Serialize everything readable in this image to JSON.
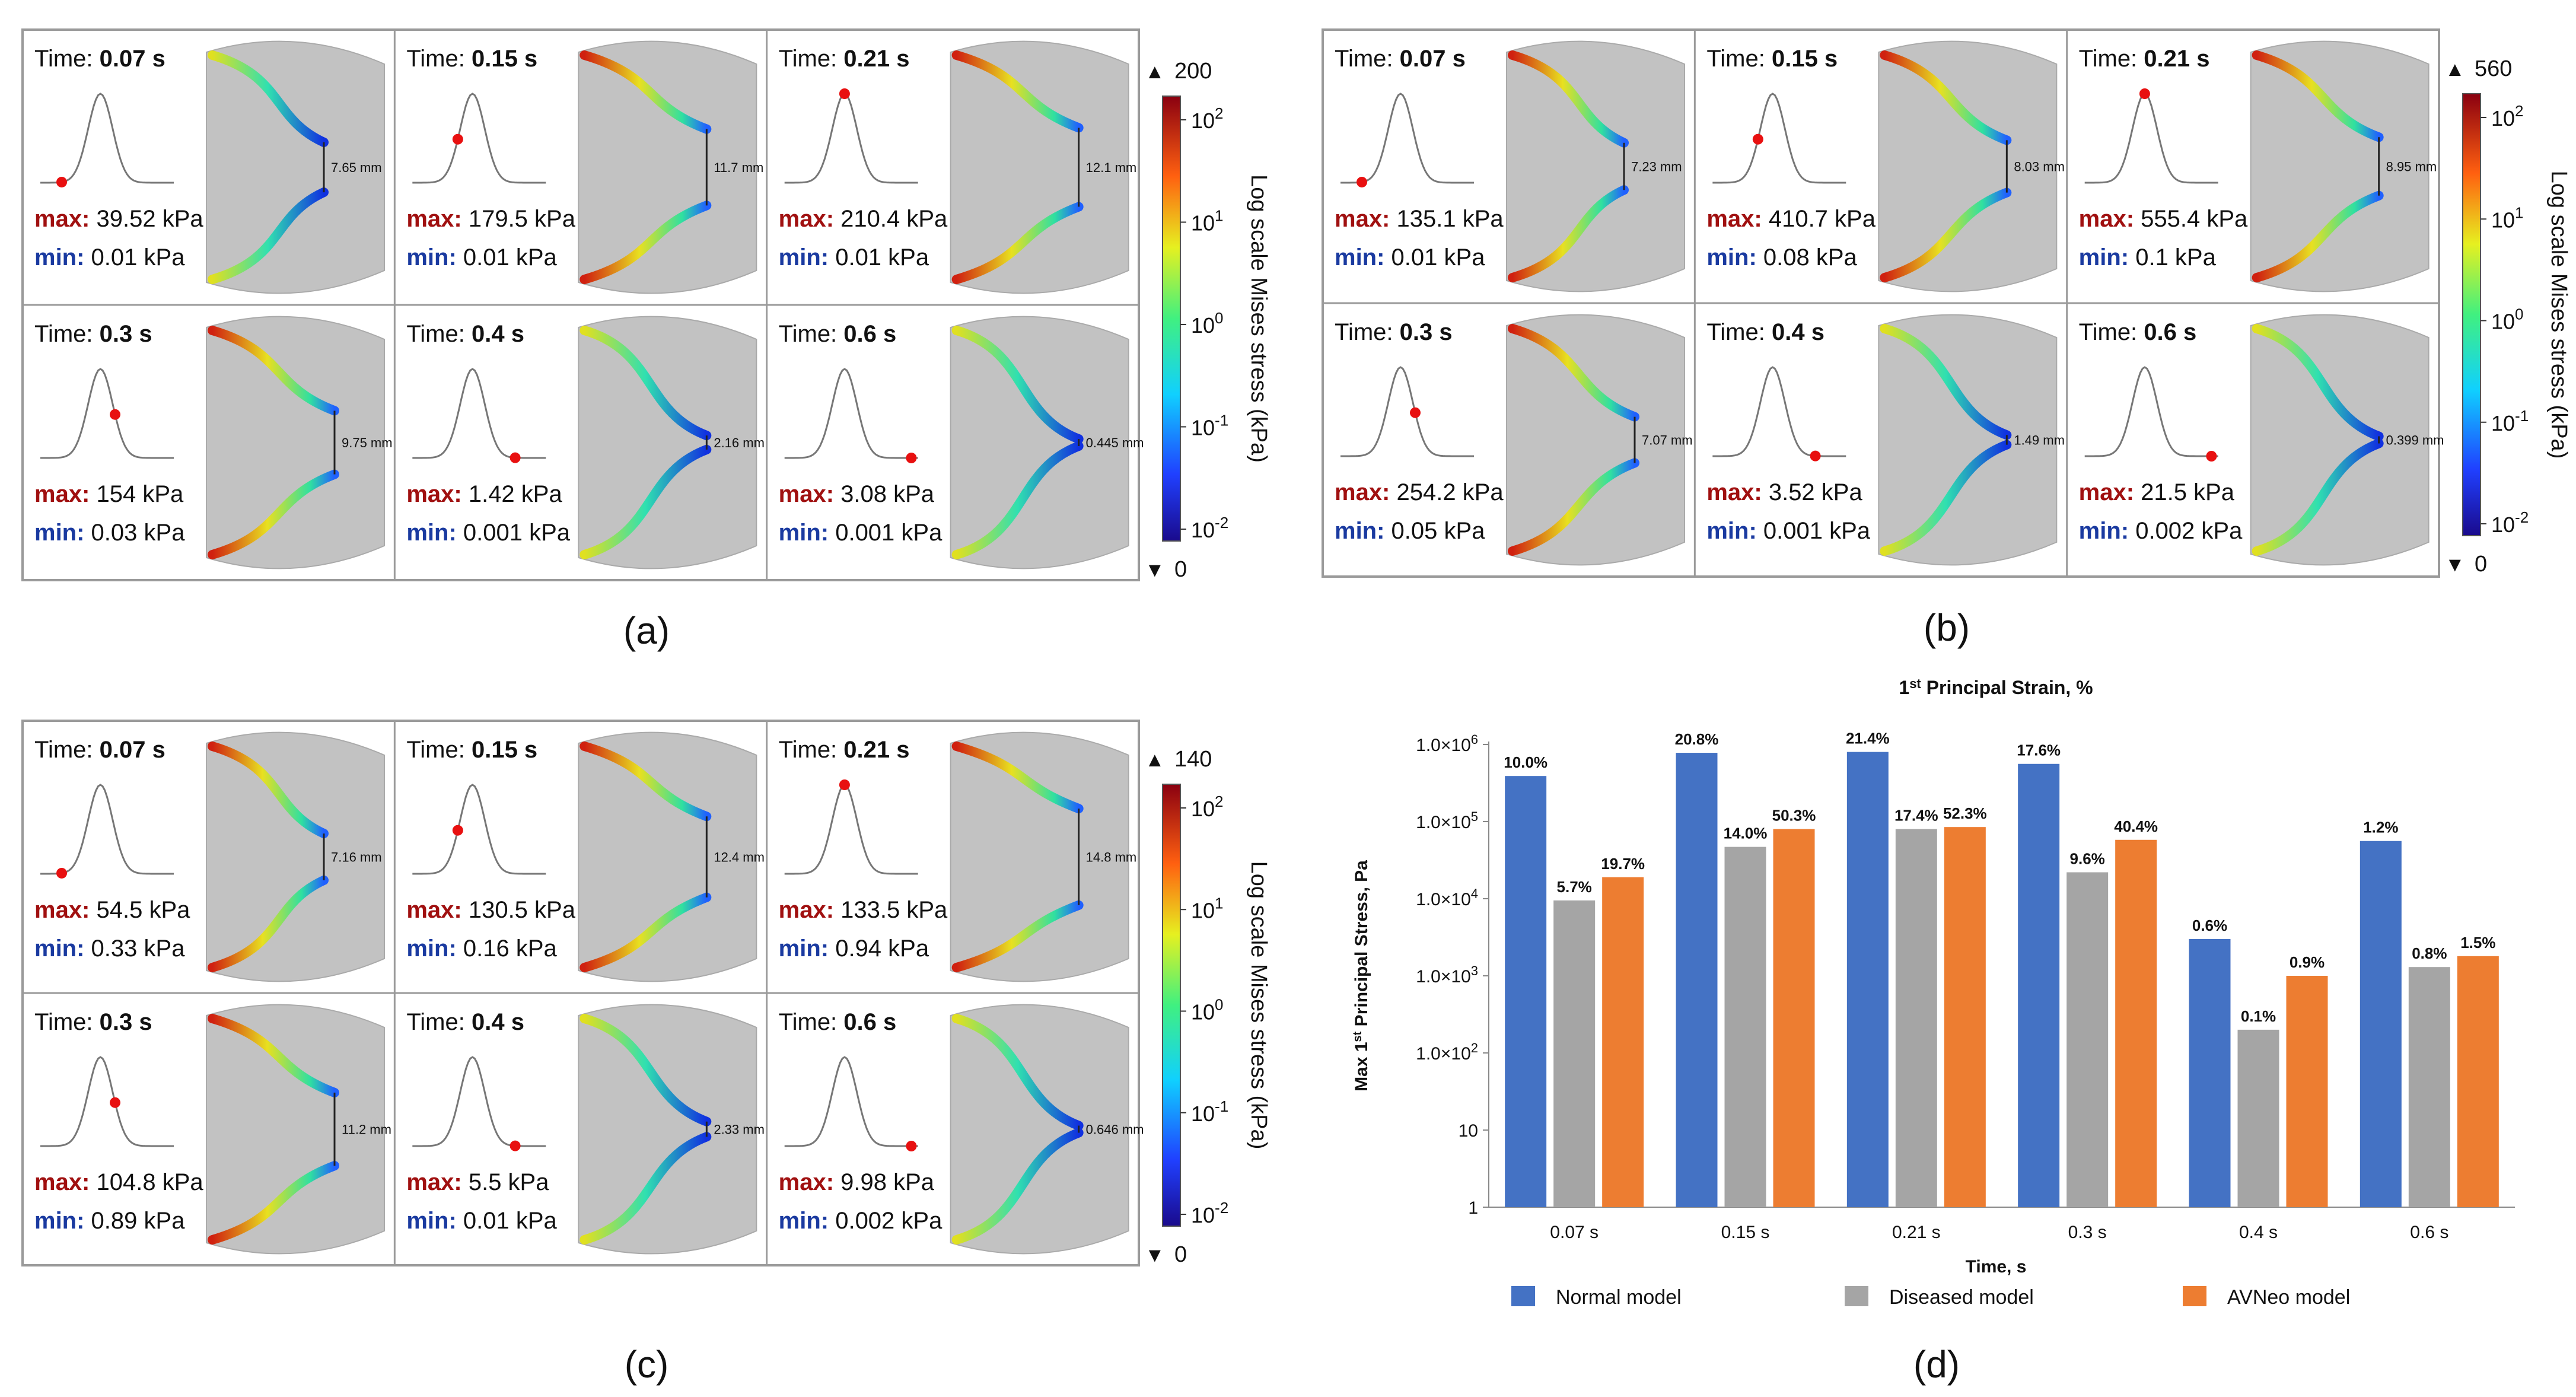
{
  "colorbar_title": "Log scale Mises stress (kPa)",
  "colorbar_ticks": [
    "10",
    "10",
    "10",
    "10",
    "10"
  ],
  "colorbar_tick_exponents": [
    "2",
    "1",
    "0",
    "-1",
    "-2"
  ],
  "time_prefix": "Time:",
  "max_label": "max:",
  "min_label": "min:",
  "panels": [
    {
      "label": "(a)",
      "cb_max": "200",
      "cb_min": "0",
      "cells": [
        {
          "time": "0.07 s",
          "max": "39.52 kPa",
          "min": "0.01 kPa",
          "gap": "7.65 mm",
          "curve_t": 0.16
        },
        {
          "time": "0.15 s",
          "max": "179.5 kPa",
          "min": "0.01 kPa",
          "gap": "11.7 mm",
          "curve_t": 0.34
        },
        {
          "time": "0.21 s",
          "max": "210.4 kPa",
          "min": "0.01 kPa",
          "gap": "12.1 mm",
          "curve_t": 0.45
        },
        {
          "time": "0.3 s",
          "max": "154 kPa",
          "min": "0.03 kPa",
          "gap": "9.75 mm",
          "curve_t": 0.56
        },
        {
          "time": "0.4 s",
          "max": "1.42 kPa",
          "min": "0.001 kPa",
          "gap": "2.16 mm",
          "curve_t": 0.77
        },
        {
          "time": "0.6 s",
          "max": "3.08 kPa",
          "min": "0.001 kPa",
          "gap": "0.445 mm",
          "curve_t": 0.95
        }
      ]
    },
    {
      "label": "(b)",
      "cb_max": "560",
      "cb_min": "0",
      "cells": [
        {
          "time": "0.07 s",
          "max": "135.1 kPa",
          "min": "0.01 kPa",
          "gap": "7.23 mm",
          "curve_t": 0.16
        },
        {
          "time": "0.15 s",
          "max": "410.7 kPa",
          "min": "0.08 kPa",
          "gap": "8.03 mm",
          "curve_t": 0.34
        },
        {
          "time": "0.21 s",
          "max": "555.4 kPa",
          "min": "0.1 kPa",
          "gap": "8.95 mm",
          "curve_t": 0.45
        },
        {
          "time": "0.3 s",
          "max": "254.2 kPa",
          "min": "0.05 kPa",
          "gap": "7.07 mm",
          "curve_t": 0.56
        },
        {
          "time": "0.4 s",
          "max": "3.52 kPa",
          "min": "0.001 kPa",
          "gap": "1.49 mm",
          "curve_t": 0.77
        },
        {
          "time": "0.6 s",
          "max": "21.5 kPa",
          "min": "0.002 kPa",
          "gap": "0.399 mm",
          "curve_t": 0.95
        }
      ]
    },
    {
      "label": "(c)",
      "cb_max": "140",
      "cb_min": "0",
      "cells": [
        {
          "time": "0.07 s",
          "max": "54.5 kPa",
          "min": "0.33 kPa",
          "gap": "7.16 mm",
          "curve_t": 0.16
        },
        {
          "time": "0.15 s",
          "max": "130.5 kPa",
          "min": "0.16 kPa",
          "gap": "12.4 mm",
          "curve_t": 0.34
        },
        {
          "time": "0.21 s",
          "max": "133.5 kPa",
          "min": "0.94 kPa",
          "gap": "14.8 mm",
          "curve_t": 0.45
        },
        {
          "time": "0.3 s",
          "max": "104.8 kPa",
          "min": "0.89 kPa",
          "gap": "11.2 mm",
          "curve_t": 0.56
        },
        {
          "time": "0.4 s",
          "max": "5.5 kPa",
          "min": "0.01 kPa",
          "gap": "2.33 mm",
          "curve_t": 0.77
        },
        {
          "time": "0.6 s",
          "max": "9.98 kPa",
          "min": "0.002 kPa",
          "gap": "0.646 mm",
          "curve_t": 0.95
        }
      ]
    }
  ],
  "chart_data": {
    "panel_label": "(d)",
    "type": "bar",
    "title": "1st Principal Strain, %",
    "title_parts": [
      "1",
      "st",
      " Principal Strain, %"
    ],
    "xlabel": "Time, s",
    "ylabel": "Max 1st Principal Stress, Pa",
    "ylabel_parts": [
      "Max 1",
      "st",
      " Principal Stress, Pa"
    ],
    "yscale": "log",
    "ylim": [
      1,
      1000000
    ],
    "ytick_values": [
      1,
      10,
      100,
      1000,
      10000,
      100000,
      1000000
    ],
    "ytick_labels": [
      {
        "base": "1",
        "exp": ""
      },
      {
        "base": "10",
        "exp": ""
      },
      {
        "base": "1.0×10",
        "exp": "2"
      },
      {
        "base": "1.0×10",
        "exp": "3"
      },
      {
        "base": "1.0×10",
        "exp": "4"
      },
      {
        "base": "1.0×10",
        "exp": "5"
      },
      {
        "base": "1.0×10",
        "exp": "6"
      }
    ],
    "categories": [
      "0.07 s",
      "0.15 s",
      "0.21 s",
      "0.3 s",
      "0.4 s",
      "0.6 s"
    ],
    "series": [
      {
        "name": "Normal model",
        "color": "#4472c4",
        "values": [
          390000,
          780000,
          800000,
          560000,
          3000,
          56000
        ],
        "labels": [
          "10.0%",
          "20.8%",
          "21.4%",
          "17.6%",
          "0.6%",
          "1.2%"
        ]
      },
      {
        "name": "Diseased model",
        "color": "#a5a5a5",
        "values": [
          9500,
          47000,
          80000,
          22000,
          200,
          1300
        ],
        "labels": [
          "5.7%",
          "14.0%",
          "17.4%",
          "9.6%",
          "0.1%",
          "0.8%"
        ]
      },
      {
        "name": "AVNeo model",
        "color": "#ed7d31",
        "values": [
          19000,
          80000,
          85000,
          58000,
          1000,
          1800
        ],
        "labels": [
          "19.7%",
          "50.3%",
          "52.3%",
          "40.4%",
          "0.9%",
          "1.5%"
        ]
      }
    ],
    "legend_position": "bottom"
  }
}
